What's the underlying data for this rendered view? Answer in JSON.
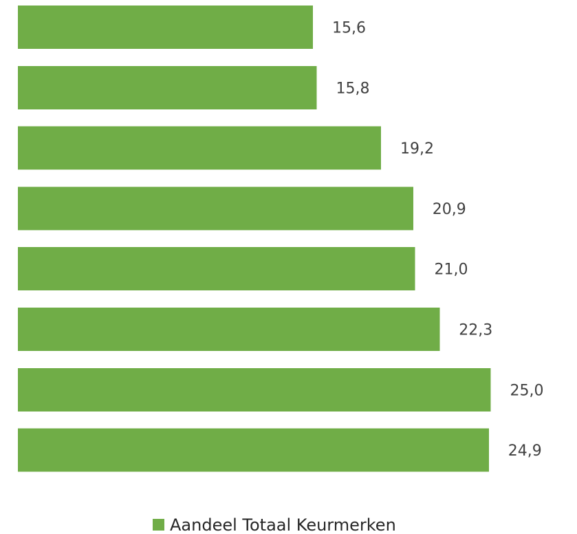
{
  "chart_data": {
    "type": "bar",
    "orientation": "horizontal",
    "values": [
      15.6,
      15.8,
      19.2,
      20.9,
      21.0,
      22.3,
      25.0,
      24.9
    ],
    "value_labels": [
      "15,6",
      "15,8",
      "19,2",
      "20,9",
      "21,0",
      "22,3",
      "25,0",
      "24,9"
    ],
    "series": [
      {
        "name": "Aandeel Totaal Keurmerken",
        "color": "#70AD47"
      }
    ],
    "xlim": [
      0,
      25.5
    ],
    "grid": false,
    "legend_position": "bottom"
  }
}
